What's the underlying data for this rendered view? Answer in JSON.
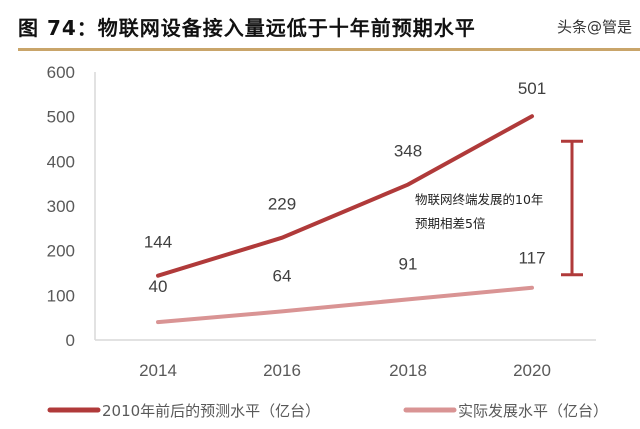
{
  "title": "图 74：物联网设备接入量远低于十年前预期水平",
  "watermark": "头条@管是",
  "chart_data": {
    "type": "line",
    "title": "",
    "categories": [
      "2014",
      "2016",
      "2018",
      "2020"
    ],
    "ylim": [
      0,
      600
    ],
    "yticks": [
      "0",
      "100",
      "200",
      "300",
      "400",
      "500",
      "600"
    ],
    "grid": false,
    "legend_placement": "bottom",
    "series": [
      {
        "name": "2010年前后的预测水平（亿台）",
        "values": [
          144,
          229,
          348,
          501
        ],
        "color": "#b03a3a"
      },
      {
        "name": "实际发展水平（亿台）",
        "values": [
          40,
          64,
          91,
          117
        ],
        "color": "#d99494"
      }
    ],
    "annotation": {
      "lines": [
        "物联网终端发展的10年",
        "预期相差5倍"
      ],
      "bracket_range": [
        146,
        445
      ],
      "color": "#b03a3a"
    }
  }
}
